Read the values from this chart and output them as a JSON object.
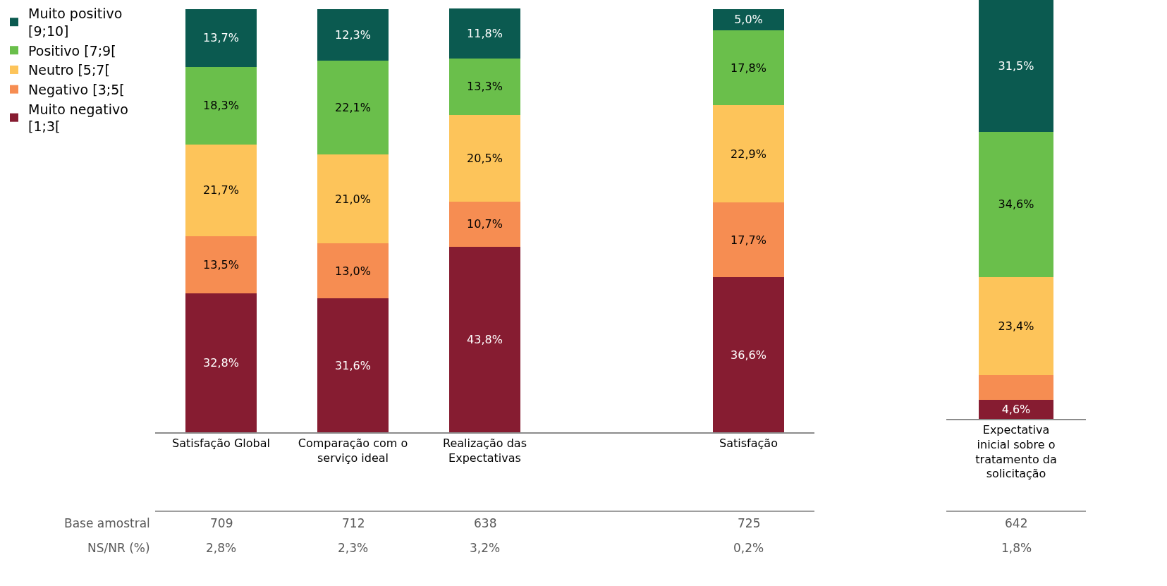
{
  "chart_data": [
    {
      "type": "bar",
      "stacked": true,
      "legend": "left",
      "categories": [
        "Satisfação Global",
        "Comparação com o serviço ideal",
        "Realização das Expectativas",
        null,
        "Satisfação"
      ],
      "series": [
        {
          "name": "Muito negativo [1;3[",
          "color": "#861c31",
          "values": [
            32.8,
            31.6,
            43.8,
            null,
            36.6
          ],
          "value_labels": [
            "32,8%",
            "31,6%",
            "43,8%",
            null,
            "36,6%"
          ]
        },
        {
          "name": "Negativo [3;5[",
          "color": "#f68d52",
          "values": [
            13.5,
            13.0,
            10.7,
            null,
            17.7
          ],
          "value_labels": [
            "13,5%",
            "13,0%",
            "10,7%",
            null,
            "17,7%"
          ]
        },
        {
          "name": "Neutro [5;7[",
          "color": "#fdc45a",
          "values": [
            21.7,
            21.0,
            20.5,
            null,
            22.9
          ],
          "value_labels": [
            "21,7%",
            "21,0%",
            "20,5%",
            null,
            "22,9%"
          ]
        },
        {
          "name": "Positivo [7;9[",
          "color": "#6abf4b",
          "values": [
            18.3,
            22.1,
            13.3,
            null,
            17.8
          ],
          "value_labels": [
            "18,3%",
            "22,1%",
            "13,3%",
            null,
            "17,8%"
          ]
        },
        {
          "name": "Muito positivo [9;10]",
          "color": "#0b5a50",
          "values": [
            13.7,
            12.3,
            11.8,
            null,
            5.0
          ],
          "value_labels": [
            "13,7%",
            "12,3%",
            "11,8%",
            null,
            "5,0%"
          ]
        }
      ],
      "annotations": [
        "Base amostral",
        "NS/NR (%)",
        "709",
        "712",
        "638",
        "725",
        "2,8%",
        "2,3%",
        "3,2%",
        "0,2%"
      ]
    },
    {
      "type": "bar",
      "stacked": true,
      "categories": [
        "Expectativa inicial sobre o tratamento da solicitação"
      ],
      "series": [
        {
          "color": "#861c31",
          "values": [
            4.6
          ],
          "value_labels": [
            "4,6%"
          ]
        },
        {
          "color": "#f68d52",
          "values": [
            5.9
          ],
          "value_labels": [
            null
          ]
        },
        {
          "color": "#fdc45a",
          "values": [
            23.4
          ],
          "value_labels": [
            "23,4%"
          ]
        },
        {
          "color": "#6abf4b",
          "values": [
            34.6
          ],
          "value_labels": [
            "34,6%"
          ]
        },
        {
          "color": "#0b5a50",
          "values": [
            31.5
          ],
          "value_labels": [
            "31,5%"
          ]
        }
      ],
      "annotations": [
        "642",
        "1,8%"
      ]
    }
  ]
}
